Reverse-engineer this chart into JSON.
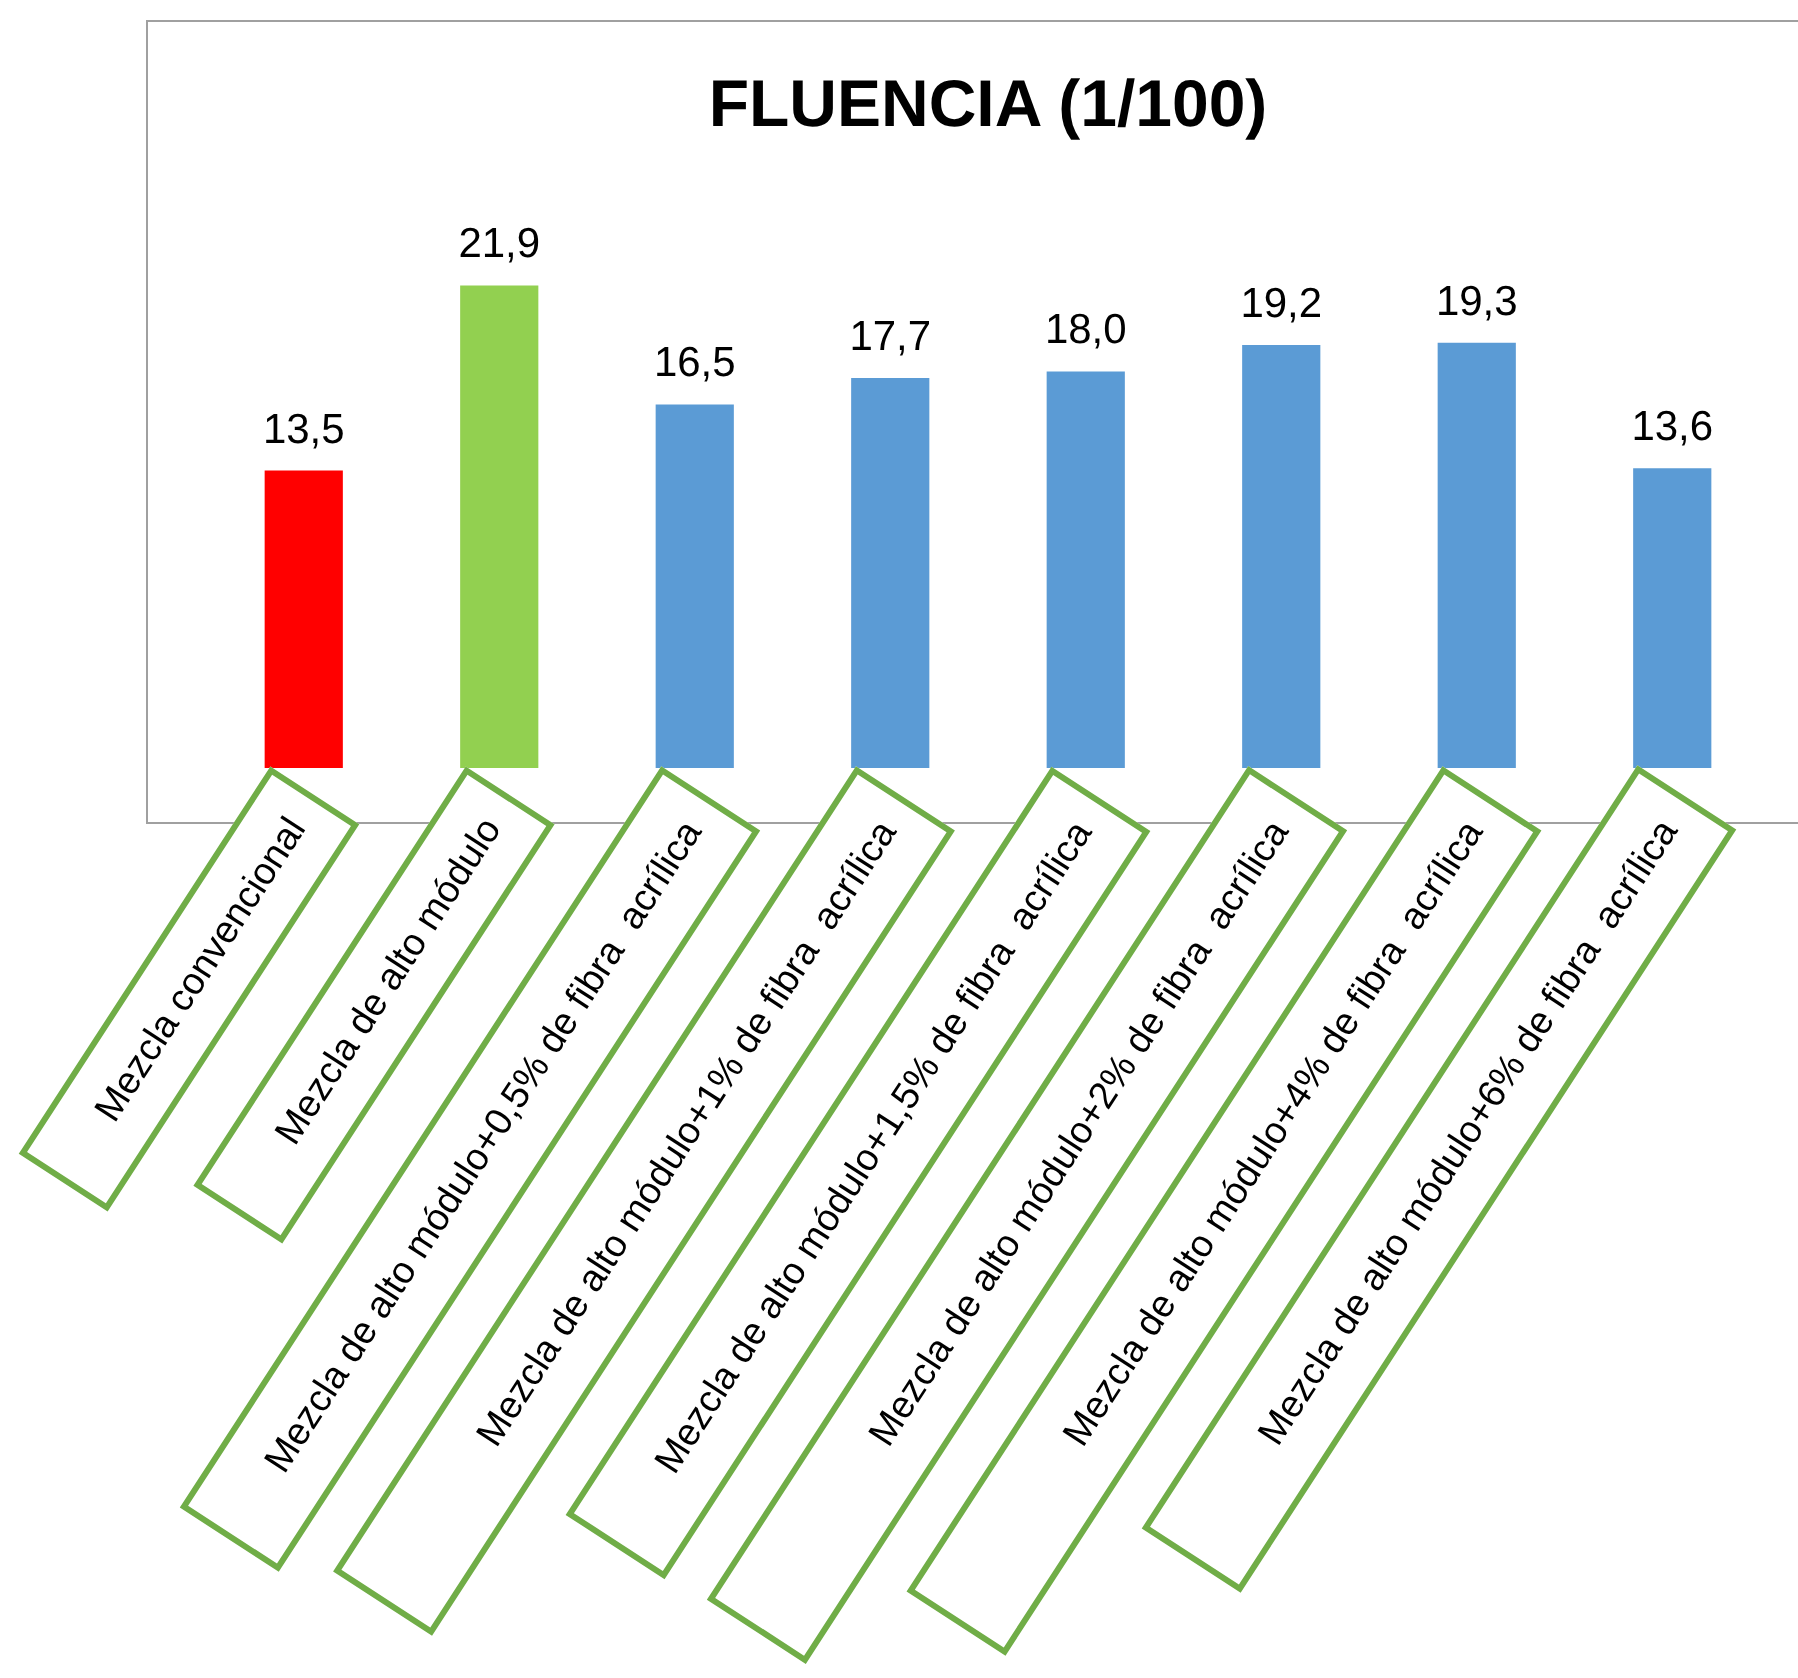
{
  "chart_data": {
    "type": "bar",
    "title": "FLUENCIA (1/100)",
    "categories": [
      "Mezcla convencional",
      "Mezcla de alto módulo",
      "Mezcla de alto módulo+0,5% de fibra  acrílica",
      "Mezcla de alto módulo+1% de fibra  acrílica",
      "Mezcla de alto módulo+1,5% de fibra  acrílica",
      "Mezcla de alto módulo+2% de fibra  acrílica",
      "Mezcla de alto módulo+4% de fibra  acrílica",
      "Mezcla de alto módulo+6% de fibra  acrílica"
    ],
    "values": [
      13.5,
      21.9,
      16.5,
      17.7,
      18.0,
      19.2,
      19.3,
      13.6
    ],
    "colors": [
      "#ff0000",
      "#92d050",
      "#5b9bd5",
      "#5b9bd5",
      "#5b9bd5",
      "#5b9bd5",
      "#5b9bd5",
      "#5b9bd5"
    ],
    "value_labels": [
      "13,5",
      "21,9",
      "16,5",
      "17,7",
      "18,0",
      "19,2",
      "19,3",
      "13,6"
    ],
    "tick_labels": "x"
  }
}
